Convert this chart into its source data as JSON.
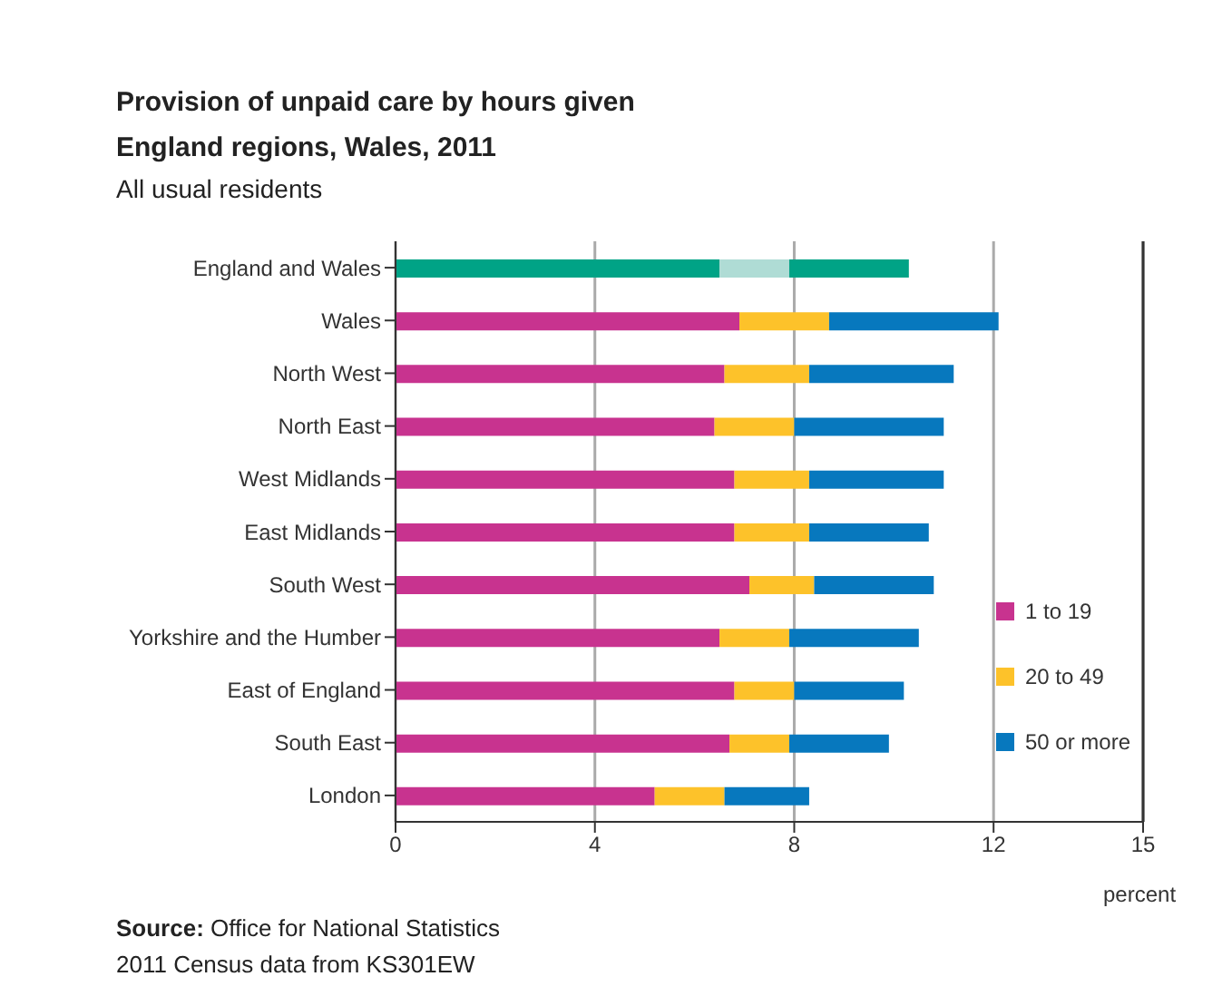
{
  "chart_data": {
    "type": "bar",
    "orientation": "horizontal",
    "stacked": true,
    "title": "Provision of unpaid care by hours given\nEngland regions, Wales, 2011",
    "subtitle": "All usual residents",
    "xlabel": "percent",
    "categories": [
      "England and Wales",
      "Wales",
      "North West",
      "North East",
      "West Midlands",
      "East Midlands",
      "South West",
      "Yorkshire and the Humber",
      "East of England",
      "South East",
      "London"
    ],
    "series": [
      {
        "name": "1 to 19",
        "color": "#c8338f",
        "colors": [
          "#00a386",
          "#c8338f",
          "#c8338f",
          "#c8338f",
          "#c8338f",
          "#c8338f",
          "#c8338f",
          "#c8338f",
          "#c8338f",
          "#c8338f",
          "#c8338f"
        ],
        "values": [
          6.5,
          6.9,
          6.6,
          6.4,
          6.8,
          6.8,
          7.1,
          6.5,
          6.8,
          6.7,
          5.2
        ]
      },
      {
        "name": "20 to 49",
        "color": "#fdc22a",
        "colors": [
          "#afdcd5",
          "#fdc22a",
          "#fdc22a",
          "#fdc22a",
          "#fdc22a",
          "#fdc22a",
          "#fdc22a",
          "#fdc22a",
          "#fdc22a",
          "#fdc22a",
          "#fdc22a"
        ],
        "values": [
          1.4,
          1.8,
          1.7,
          1.6,
          1.5,
          1.5,
          1.3,
          1.4,
          1.2,
          1.2,
          1.4
        ]
      },
      {
        "name": "50 or more",
        "color": "#0778be",
        "colors": [
          "#00a386",
          "#0778be",
          "#0778be",
          "#0778be",
          "#0778be",
          "#0778be",
          "#0778be",
          "#0778be",
          "#0778be",
          "#0778be",
          "#0778be"
        ],
        "values": [
          2.4,
          3.4,
          2.9,
          3.0,
          2.7,
          2.4,
          2.4,
          2.6,
          2.2,
          2.0,
          1.7
        ]
      }
    ],
    "xlim": [
      0,
      15
    ],
    "xticks": [
      0,
      4,
      8,
      12,
      15
    ],
    "grid": "x",
    "legend": "right",
    "annotations": [
      "Source: Office for National Statistics",
      "2011 Census data from KS301EW"
    ]
  }
}
